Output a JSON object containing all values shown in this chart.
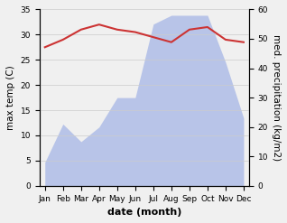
{
  "months": [
    "Jan",
    "Feb",
    "Mar",
    "Apr",
    "May",
    "Jun",
    "Jul",
    "Aug",
    "Sep",
    "Oct",
    "Nov",
    "Dec"
  ],
  "temperature": [
    27.5,
    29.0,
    31.0,
    32.0,
    31.0,
    30.5,
    29.5,
    28.5,
    31.0,
    31.5,
    29.0,
    28.5
  ],
  "precipitation": [
    8,
    21,
    15,
    20,
    30,
    30,
    55,
    58,
    58,
    58,
    42,
    23
  ],
  "temp_color": "#cc3333",
  "precip_fill_color": "#b8c4e8",
  "precip_fill_alpha": 1.0,
  "xlabel": "date (month)",
  "ylabel_left": "max temp (C)",
  "ylabel_right": "med. precipitation (kg/m2)",
  "ylim_left": [
    0,
    35
  ],
  "ylim_right": [
    0,
    60
  ],
  "yticks_left": [
    0,
    5,
    10,
    15,
    20,
    25,
    30,
    35
  ],
  "yticks_right": [
    0,
    10,
    20,
    30,
    40,
    50,
    60
  ],
  "bg_color": "#f0f0f0",
  "plot_bg_color": "#ffffff"
}
